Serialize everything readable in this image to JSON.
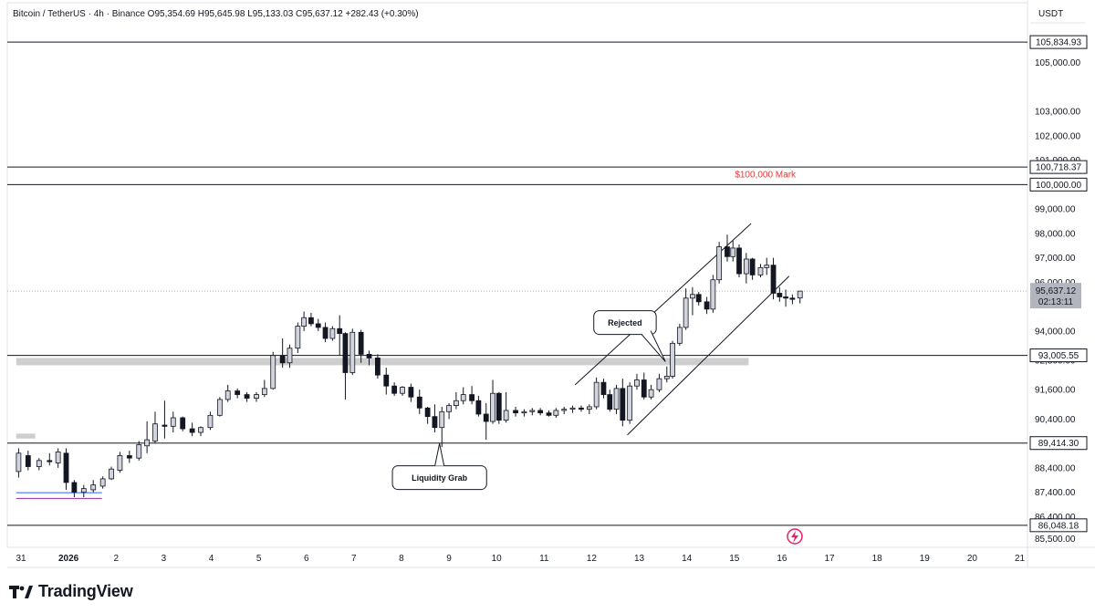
{
  "header": {
    "symbol": "Bitcoin / TetherUS · 4h · Binance",
    "ohlc": "O95,354.69 H95,645.98 L95,133.03 C95,637.12 +282.43 (+0.30%)",
    "currency": "USDT"
  },
  "brand": {
    "name": "TradingView"
  },
  "colors": {
    "bull": "#d1d4dc",
    "bear": "#131722",
    "outline": "#131722",
    "mark": "#e53935",
    "zone": "#c9c9c9",
    "grid": "#e8e8e8",
    "range": "#2962ff",
    "range2": "#9c27b0"
  },
  "chart_data": {
    "type": "candlestick",
    "xaxis": {
      "ticks": [
        {
          "day": 0,
          "label": "31"
        },
        {
          "day": 1,
          "label": "2026"
        },
        {
          "day": 2,
          "label": "2"
        },
        {
          "day": 3,
          "label": "3"
        },
        {
          "day": 4,
          "label": "4"
        },
        {
          "day": 5,
          "label": "5"
        },
        {
          "day": 6,
          "label": "6"
        },
        {
          "day": 7,
          "label": "7"
        },
        {
          "day": 8,
          "label": "8"
        },
        {
          "day": 9,
          "label": "9"
        },
        {
          "day": 10,
          "label": "10"
        },
        {
          "day": 11,
          "label": "11"
        },
        {
          "day": 12,
          "label": "12"
        },
        {
          "day": 13,
          "label": "13"
        },
        {
          "day": 14,
          "label": "14"
        },
        {
          "day": 15,
          "label": "15"
        },
        {
          "day": 16,
          "label": "16"
        },
        {
          "day": 17,
          "label": "17"
        },
        {
          "day": 18,
          "label": "18"
        },
        {
          "day": 19,
          "label": "19"
        },
        {
          "day": 20,
          "label": "20"
        },
        {
          "day": 21,
          "label": "21"
        }
      ]
    },
    "yaxis": {
      "range": [
        85100,
        106000
      ],
      "ticks": [
        {
          "value": 105000,
          "label": "105,000.00"
        },
        {
          "value": 103000,
          "label": "103,000.00"
        },
        {
          "value": 102000,
          "label": "102,000.00"
        },
        {
          "value": 101000,
          "label": "101,000.00"
        },
        {
          "value": 99000,
          "label": "99,000.00"
        },
        {
          "value": 98000,
          "label": "98,000.00"
        },
        {
          "value": 97000,
          "label": "97,000.00"
        },
        {
          "value": 96000,
          "label": "96,000.00"
        },
        {
          "value": 94000,
          "label": "94,000.00"
        },
        {
          "value": 92800,
          "label": "92,800.00"
        },
        {
          "value": 91600,
          "label": "91,600.00"
        },
        {
          "value": 90400,
          "label": "90,400.00"
        },
        {
          "value": 88400,
          "label": "88,400.00"
        },
        {
          "value": 87400,
          "label": "87,400.00"
        },
        {
          "value": 86400,
          "label": "86,400.00"
        },
        {
          "value": 85500,
          "label": "85,500.00"
        }
      ]
    },
    "levels": [
      {
        "value": 105834.93,
        "label": "105,834.93"
      },
      {
        "value": 100718.37,
        "label": "100,718.37"
      },
      {
        "value": 100000.0,
        "label": "100,000.00"
      },
      {
        "value": 93005.55,
        "label": "93,005.55"
      },
      {
        "value": 89414.3,
        "label": "89,414.30"
      },
      {
        "value": 86048.18,
        "label": "86,048.18"
      }
    ],
    "last_price": {
      "value": 95637.12,
      "label": "95,637.12",
      "countdown": "02:13:11"
    },
    "zones": [
      {
        "from_day": -0.1,
        "to_day": 15.3,
        "low": 92600,
        "high": 92900
      },
      {
        "from_day": -0.1,
        "to_day": 0.3,
        "low": 89600,
        "high": 89800
      }
    ],
    "ranges": [
      {
        "from_day": -0.1,
        "to_day": 1.7,
        "value": 87380,
        "color": "range"
      },
      {
        "from_day": -0.1,
        "to_day": 1.7,
        "value": 87150,
        "color": "range2"
      }
    ],
    "channel": [
      {
        "d1": 12.75,
        "v1": 89750,
        "d2": 16.15,
        "v2": 96250
      },
      {
        "d1": 11.65,
        "v1": 91800,
        "d2": 15.35,
        "v2": 98400
      }
    ],
    "annotations": [
      {
        "text": "$100,000 Mark",
        "day": 15.65,
        "value": 100300,
        "style": "mark"
      },
      {
        "text": "Liquidity Grab",
        "day": 8.8,
        "value": 88000,
        "style": "callout",
        "pointer_day": 8.8,
        "pointer_value": 89400,
        "pointer": "up"
      },
      {
        "text": "Rejected",
        "day": 12.7,
        "value": 94350,
        "style": "callout",
        "pointer_day": 13.55,
        "pointer_value": 92750,
        "pointer": "down-right"
      }
    ],
    "candles": [
      {
        "d": -0.05,
        "o": 88250,
        "h": 89200,
        "l": 88000,
        "c": 89000
      },
      {
        "d": 0.15,
        "o": 88900,
        "h": 89100,
        "l": 88300,
        "c": 88450
      },
      {
        "d": 0.38,
        "o": 88450,
        "h": 88800,
        "l": 88300,
        "c": 88700
      },
      {
        "d": 0.6,
        "o": 88700,
        "h": 89000,
        "l": 88500,
        "c": 88650
      },
      {
        "d": 0.78,
        "o": 88600,
        "h": 89200,
        "l": 88400,
        "c": 89050
      },
      {
        "d": 0.95,
        "o": 89000,
        "h": 89200,
        "l": 87500,
        "c": 87800
      },
      {
        "d": 1.12,
        "o": 87800,
        "h": 87900,
        "l": 87200,
        "c": 87400
      },
      {
        "d": 1.32,
        "o": 87400,
        "h": 87700,
        "l": 87200,
        "c": 87550
      },
      {
        "d": 1.52,
        "o": 87500,
        "h": 87900,
        "l": 87400,
        "c": 87700
      },
      {
        "d": 1.72,
        "o": 87650,
        "h": 88050,
        "l": 87550,
        "c": 87950
      },
      {
        "d": 1.9,
        "o": 87950,
        "h": 88450,
        "l": 87900,
        "c": 88350
      },
      {
        "d": 2.08,
        "o": 88300,
        "h": 89050,
        "l": 88200,
        "c": 88900
      },
      {
        "d": 2.28,
        "o": 88900,
        "h": 89100,
        "l": 88600,
        "c": 88800
      },
      {
        "d": 2.48,
        "o": 88800,
        "h": 89500,
        "l": 88700,
        "c": 89350
      },
      {
        "d": 2.65,
        "o": 89300,
        "h": 90300,
        "l": 89000,
        "c": 89550
      },
      {
        "d": 2.82,
        "o": 89500,
        "h": 90700,
        "l": 89400,
        "c": 90200
      },
      {
        "d": 3.02,
        "o": 90150,
        "h": 91150,
        "l": 89600,
        "c": 90100
      },
      {
        "d": 3.2,
        "o": 90100,
        "h": 90700,
        "l": 89850,
        "c": 90450
      },
      {
        "d": 3.4,
        "o": 90450,
        "h": 90500,
        "l": 89900,
        "c": 90000
      },
      {
        "d": 3.6,
        "o": 90000,
        "h": 90250,
        "l": 89700,
        "c": 89850
      },
      {
        "d": 3.78,
        "o": 89850,
        "h": 90100,
        "l": 89700,
        "c": 90050
      },
      {
        "d": 3.98,
        "o": 90050,
        "h": 90700,
        "l": 89950,
        "c": 90550
      },
      {
        "d": 4.18,
        "o": 90550,
        "h": 91300,
        "l": 90500,
        "c": 91200
      },
      {
        "d": 4.35,
        "o": 91200,
        "h": 91800,
        "l": 91100,
        "c": 91550
      },
      {
        "d": 4.55,
        "o": 91550,
        "h": 91650,
        "l": 91250,
        "c": 91400
      },
      {
        "d": 4.75,
        "o": 91400,
        "h": 91500,
        "l": 91100,
        "c": 91250
      },
      {
        "d": 4.95,
        "o": 91250,
        "h": 91500,
        "l": 91100,
        "c": 91400
      },
      {
        "d": 5.12,
        "o": 91400,
        "h": 92000,
        "l": 91300,
        "c": 91650
      },
      {
        "d": 5.3,
        "o": 91650,
        "h": 93150,
        "l": 91600,
        "c": 93000
      },
      {
        "d": 5.5,
        "o": 93000,
        "h": 93700,
        "l": 92500,
        "c": 92700
      },
      {
        "d": 5.65,
        "o": 92700,
        "h": 93450,
        "l": 92500,
        "c": 93300
      },
      {
        "d": 5.82,
        "o": 93300,
        "h": 94350,
        "l": 93100,
        "c": 94200
      },
      {
        "d": 5.95,
        "o": 94200,
        "h": 94800,
        "l": 94000,
        "c": 94550
      },
      {
        "d": 6.1,
        "o": 94550,
        "h": 94750,
        "l": 94200,
        "c": 94300
      },
      {
        "d": 6.25,
        "o": 94300,
        "h": 94500,
        "l": 94000,
        "c": 94150
      },
      {
        "d": 6.4,
        "o": 94150,
        "h": 94350,
        "l": 93550,
        "c": 93700
      },
      {
        "d": 6.55,
        "o": 93700,
        "h": 94200,
        "l": 93600,
        "c": 94100
      },
      {
        "d": 6.7,
        "o": 94100,
        "h": 94650,
        "l": 93000,
        "c": 93900
      },
      {
        "d": 6.82,
        "o": 93900,
        "h": 93950,
        "l": 91200,
        "c": 92300
      },
      {
        "d": 6.97,
        "o": 92300,
        "h": 94100,
        "l": 92200,
        "c": 93950
      },
      {
        "d": 7.15,
        "o": 93950,
        "h": 94050,
        "l": 92700,
        "c": 93050
      },
      {
        "d": 7.32,
        "o": 93050,
        "h": 93200,
        "l": 92600,
        "c": 92900
      },
      {
        "d": 7.5,
        "o": 92900,
        "h": 93050,
        "l": 92050,
        "c": 92200
      },
      {
        "d": 7.68,
        "o": 92200,
        "h": 92500,
        "l": 91400,
        "c": 91750
      },
      {
        "d": 7.85,
        "o": 91750,
        "h": 91900,
        "l": 91350,
        "c": 91450
      },
      {
        "d": 8.02,
        "o": 91450,
        "h": 91750,
        "l": 91350,
        "c": 91700
      },
      {
        "d": 8.2,
        "o": 91700,
        "h": 91850,
        "l": 91100,
        "c": 91300
      },
      {
        "d": 8.38,
        "o": 91300,
        "h": 91600,
        "l": 90600,
        "c": 90850
      },
      {
        "d": 8.55,
        "o": 90850,
        "h": 90900,
        "l": 90200,
        "c": 90500
      },
      {
        "d": 8.7,
        "o": 90500,
        "h": 91000,
        "l": 89850,
        "c": 90050
      },
      {
        "d": 8.85,
        "o": 90050,
        "h": 90900,
        "l": 89250,
        "c": 90700
      },
      {
        "d": 9.0,
        "o": 90700,
        "h": 91050,
        "l": 90400,
        "c": 90950
      },
      {
        "d": 9.15,
        "o": 90950,
        "h": 91500,
        "l": 90800,
        "c": 91150
      },
      {
        "d": 9.3,
        "o": 91150,
        "h": 91700,
        "l": 91000,
        "c": 91400
      },
      {
        "d": 9.48,
        "o": 91400,
        "h": 91750,
        "l": 91000,
        "c": 91150
      },
      {
        "d": 9.62,
        "o": 91150,
        "h": 91350,
        "l": 90500,
        "c": 90600
      },
      {
        "d": 9.78,
        "o": 90600,
        "h": 91050,
        "l": 89550,
        "c": 90300
      },
      {
        "d": 9.92,
        "o": 90300,
        "h": 92000,
        "l": 90200,
        "c": 91450
      },
      {
        "d": 10.05,
        "o": 91450,
        "h": 91500,
        "l": 90200,
        "c": 90350
      },
      {
        "d": 10.2,
        "o": 90350,
        "h": 91500,
        "l": 90250,
        "c": 90750
      },
      {
        "d": 10.4,
        "o": 90750,
        "h": 90900,
        "l": 90500,
        "c": 90650
      },
      {
        "d": 10.58,
        "o": 90650,
        "h": 90800,
        "l": 90500,
        "c": 90700
      },
      {
        "d": 10.75,
        "o": 90700,
        "h": 90850,
        "l": 90550,
        "c": 90750
      },
      {
        "d": 10.92,
        "o": 90750,
        "h": 90850,
        "l": 90550,
        "c": 90650
      },
      {
        "d": 11.1,
        "o": 90650,
        "h": 90750,
        "l": 90500,
        "c": 90550
      },
      {
        "d": 11.25,
        "o": 90550,
        "h": 90850,
        "l": 90450,
        "c": 90750
      },
      {
        "d": 11.42,
        "o": 90750,
        "h": 90900,
        "l": 90600,
        "c": 90800
      },
      {
        "d": 11.6,
        "o": 90800,
        "h": 90950,
        "l": 90650,
        "c": 90850
      },
      {
        "d": 11.78,
        "o": 90850,
        "h": 90950,
        "l": 90700,
        "c": 90800
      },
      {
        "d": 11.95,
        "o": 90800,
        "h": 91000,
        "l": 90600,
        "c": 90900
      },
      {
        "d": 12.1,
        "o": 90900,
        "h": 92100,
        "l": 90800,
        "c": 91900
      },
      {
        "d": 12.25,
        "o": 91900,
        "h": 92050,
        "l": 91250,
        "c": 91400
      },
      {
        "d": 12.38,
        "o": 91400,
        "h": 91600,
        "l": 90700,
        "c": 90800
      },
      {
        "d": 12.52,
        "o": 90800,
        "h": 91800,
        "l": 90600,
        "c": 91650
      },
      {
        "d": 12.65,
        "o": 91650,
        "h": 92050,
        "l": 90100,
        "c": 90350
      },
      {
        "d": 12.8,
        "o": 90350,
        "h": 91900,
        "l": 90200,
        "c": 91750
      },
      {
        "d": 12.95,
        "o": 91750,
        "h": 92250,
        "l": 91600,
        "c": 92000
      },
      {
        "d": 13.1,
        "o": 92000,
        "h": 92300,
        "l": 91200,
        "c": 91300
      },
      {
        "d": 13.25,
        "o": 91300,
        "h": 91800,
        "l": 91200,
        "c": 91600
      },
      {
        "d": 13.42,
        "o": 91600,
        "h": 92250,
        "l": 91500,
        "c": 92050
      },
      {
        "d": 13.58,
        "o": 92050,
        "h": 92550,
        "l": 91900,
        "c": 92150
      },
      {
        "d": 13.7,
        "o": 92150,
        "h": 93600,
        "l": 92050,
        "c": 93500
      },
      {
        "d": 13.85,
        "o": 93500,
        "h": 94300,
        "l": 93400,
        "c": 94150
      },
      {
        "d": 13.98,
        "o": 94150,
        "h": 95750,
        "l": 94050,
        "c": 95350
      },
      {
        "d": 14.12,
        "o": 95350,
        "h": 95800,
        "l": 94650,
        "c": 95500
      },
      {
        "d": 14.25,
        "o": 95500,
        "h": 95600,
        "l": 95050,
        "c": 95200
      },
      {
        "d": 14.42,
        "o": 95200,
        "h": 95400,
        "l": 94700,
        "c": 94900
      },
      {
        "d": 14.55,
        "o": 94900,
        "h": 96300,
        "l": 94750,
        "c": 96100
      },
      {
        "d": 14.68,
        "o": 96100,
        "h": 97650,
        "l": 95950,
        "c": 97450
      },
      {
        "d": 14.85,
        "o": 97450,
        "h": 97950,
        "l": 96850,
        "c": 97050
      },
      {
        "d": 14.97,
        "o": 97050,
        "h": 97700,
        "l": 96850,
        "c": 97400
      },
      {
        "d": 15.1,
        "o": 97400,
        "h": 97550,
        "l": 96200,
        "c": 96350
      },
      {
        "d": 15.25,
        "o": 96350,
        "h": 97200,
        "l": 95950,
        "c": 96950
      },
      {
        "d": 15.38,
        "o": 96950,
        "h": 97000,
        "l": 96100,
        "c": 96300
      },
      {
        "d": 15.55,
        "o": 96300,
        "h": 96750,
        "l": 96200,
        "c": 96600
      },
      {
        "d": 15.68,
        "o": 96600,
        "h": 97000,
        "l": 96300,
        "c": 96700
      },
      {
        "d": 15.82,
        "o": 96700,
        "h": 97000,
        "l": 95300,
        "c": 95550
      },
      {
        "d": 15.95,
        "o": 95550,
        "h": 95800,
        "l": 95200,
        "c": 95400
      },
      {
        "d": 16.08,
        "o": 95400,
        "h": 95700,
        "l": 95000,
        "c": 95350
      },
      {
        "d": 16.22,
        "o": 95350,
        "h": 95500,
        "l": 95100,
        "c": 95300
      },
      {
        "d": 16.38,
        "o": 95354.69,
        "h": 95645.98,
        "l": 95133.03,
        "c": 95637.12
      }
    ]
  }
}
